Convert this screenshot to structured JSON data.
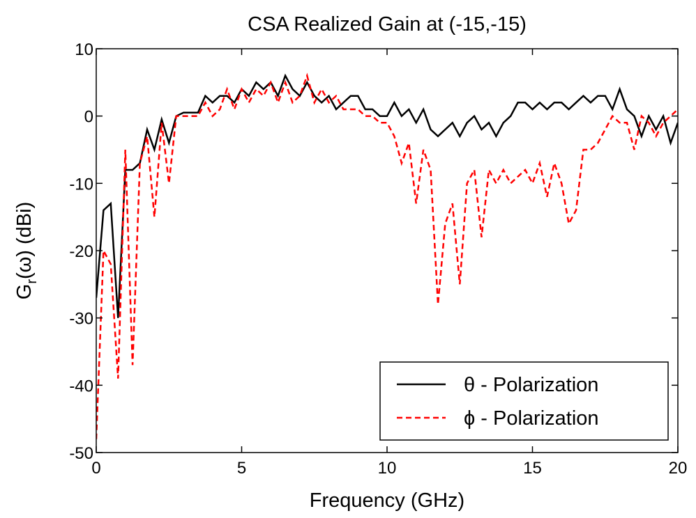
{
  "chart_data": {
    "type": "line",
    "title": "CSA Realized Gain at (-15,-15)",
    "xlabel": "Frequency (GHz)",
    "ylabel": {
      "main": "G",
      "sub": "r",
      "rest": "(ω) (dBi)"
    },
    "x": [
      0,
      0.25,
      0.5,
      0.75,
      1,
      1.25,
      1.5,
      1.75,
      2,
      2.25,
      2.5,
      2.75,
      3,
      3.25,
      3.5,
      3.75,
      4,
      4.25,
      4.5,
      4.75,
      5,
      5.25,
      5.5,
      5.75,
      6,
      6.25,
      6.5,
      6.75,
      7,
      7.25,
      7.5,
      7.75,
      8,
      8.25,
      8.5,
      8.75,
      9,
      9.25,
      9.5,
      9.75,
      10,
      10.25,
      10.5,
      10.75,
      11,
      11.25,
      11.5,
      11.75,
      12,
      12.25,
      12.5,
      12.75,
      13,
      13.25,
      13.5,
      13.75,
      14,
      14.25,
      14.5,
      14.75,
      15,
      15.25,
      15.5,
      15.75,
      16,
      16.25,
      16.5,
      16.75,
      17,
      17.25,
      17.5,
      17.75,
      18,
      18.25,
      18.5,
      18.75,
      19,
      19.25,
      19.5,
      19.75,
      20
    ],
    "series": [
      {
        "name": "θ - Polarization",
        "color": "#000000",
        "dash": "none",
        "values": [
          -27,
          -14,
          -13,
          -30,
          -8,
          -8,
          -7,
          -2,
          -5,
          -0.5,
          -4,
          0,
          0.5,
          0.5,
          0.5,
          3,
          2,
          3,
          3,
          2,
          4,
          3,
          5,
          4,
          5,
          3,
          6,
          4,
          3,
          5,
          3,
          2,
          3,
          1,
          2,
          3,
          3,
          1,
          1,
          0,
          0,
          2,
          0,
          1,
          -1,
          1,
          -2,
          -3,
          -2,
          -1,
          -3,
          -1,
          0,
          -2,
          -1,
          -3,
          -1,
          0,
          2,
          2,
          1,
          2,
          1,
          2,
          2,
          1,
          2,
          3,
          2,
          3,
          3,
          1,
          4,
          1,
          0,
          -3,
          0,
          -2,
          0,
          -4,
          -1
        ]
      },
      {
        "name": "ϕ - Polarization",
        "color": "#ff0000",
        "dash": "8,5",
        "values": [
          -48,
          -20,
          -22,
          -39,
          -5,
          -37,
          -7,
          -3,
          -15,
          -1,
          -10,
          0,
          0,
          0,
          0,
          2,
          0,
          1,
          4,
          1,
          4,
          2,
          4,
          3,
          5,
          2,
          5,
          2,
          3,
          6,
          2,
          4,
          2,
          3,
          1,
          1,
          1,
          0,
          0,
          -1,
          -1,
          -3,
          -7,
          -4,
          -13,
          -5,
          -8,
          -28,
          -16,
          -13,
          -25,
          -10,
          -8,
          -18,
          -8,
          -10,
          -8,
          -10,
          -9,
          -8,
          -10,
          -7,
          -12,
          -7,
          -10,
          -16,
          -14,
          -5,
          -5,
          -4,
          -2,
          0,
          -1,
          -1,
          -5,
          0,
          -1,
          -3,
          -1,
          0,
          1
        ]
      }
    ],
    "xlim": [
      0,
      20
    ],
    "ylim": [
      -50,
      10
    ],
    "xticks": [
      0,
      5,
      10,
      15,
      20
    ],
    "yticks": [
      -50,
      -40,
      -30,
      -20,
      -10,
      0,
      10
    ],
    "grid": false,
    "legend": "lower right"
  }
}
